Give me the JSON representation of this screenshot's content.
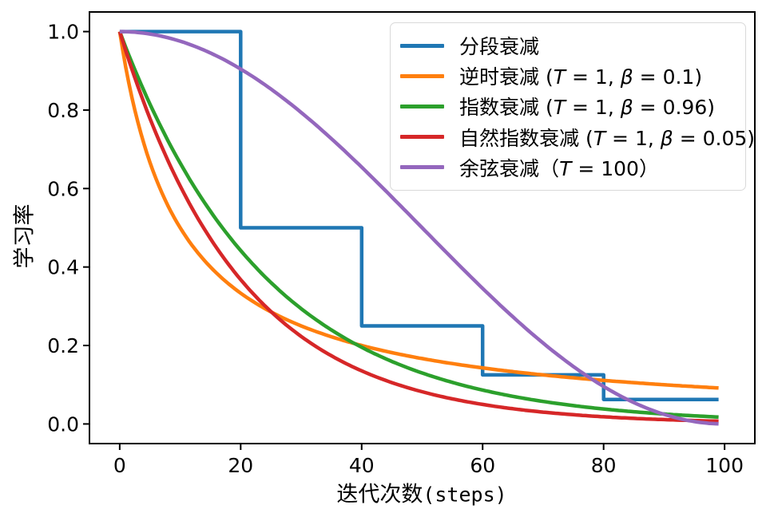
{
  "chart_data": {
    "type": "line",
    "title": "",
    "xlabel": "迭代次数",
    "xlabel_suffix": "(steps)",
    "ylabel": "学习率",
    "x_ticks": [
      0,
      20,
      40,
      60,
      80,
      100
    ],
    "y_ticks": [
      0.0,
      0.2,
      0.4,
      0.6,
      0.8,
      1.0
    ],
    "y_tick_labels": [
      "0.0",
      "0.2",
      "0.4",
      "0.6",
      "0.8",
      "1.0"
    ],
    "xlim": [
      -5,
      105
    ],
    "ylim": [
      -0.05,
      1.05
    ],
    "x_range": [
      0,
      99
    ],
    "grid": false,
    "legend_position": "upper-right",
    "axis_color": "#000000",
    "background_color": "#ffffff",
    "series": [
      {
        "key": "piecewise-decay",
        "label": "分段衰减",
        "color": "#1f77b4",
        "type": "piecewise",
        "breakpoints": [
          0,
          20,
          40,
          60,
          80
        ],
        "values": [
          1.0,
          0.5,
          0.25,
          0.125,
          0.0625
        ]
      },
      {
        "key": "inverse-time-decay",
        "label": "逆时衰减 (T = 1, β = 0.1)",
        "color": "#ff7f0e",
        "type": "inverse_time",
        "params": {
          "T": 1,
          "beta": 0.1
        }
      },
      {
        "key": "exponential-decay",
        "label": "指数衰减 (T = 1, β = 0.96)",
        "color": "#2ca02c",
        "type": "exponential",
        "params": {
          "T": 1,
          "beta": 0.96
        }
      },
      {
        "key": "natural-exp-decay",
        "label": "自然指数衰减 (T = 1, β = 0.05)",
        "color": "#d62728",
        "type": "natural_exp",
        "params": {
          "T": 1,
          "beta": 0.05
        }
      },
      {
        "key": "cosine-decay",
        "label": "余弦衰减（T = 100）",
        "color": "#9467bd",
        "type": "cosine",
        "params": {
          "T": 100
        }
      }
    ],
    "sampled_points": {
      "x": [
        0,
        10,
        20,
        30,
        40,
        50,
        60,
        70,
        80,
        90,
        99
      ],
      "series": {
        "piecewise-decay": [
          1.0,
          1.0,
          0.5,
          0.5,
          0.25,
          0.25,
          0.125,
          0.125,
          0.0625,
          0.0625,
          0.0625
        ],
        "inverse-time-decay": [
          1.0,
          0.5,
          0.3333,
          0.25,
          0.2,
          0.1667,
          0.1429,
          0.125,
          0.1111,
          0.1,
          0.0917
        ],
        "exponential-decay": [
          1.0,
          0.6648,
          0.442,
          0.2939,
          0.1954,
          0.1299,
          0.0864,
          0.0574,
          0.0382,
          0.0254,
          0.0176
        ],
        "natural-exp-decay": [
          1.0,
          0.6065,
          0.3679,
          0.2231,
          0.1353,
          0.0821,
          0.0498,
          0.0302,
          0.0183,
          0.0111,
          0.0071
        ],
        "cosine-decay": [
          1.0,
          0.9755,
          0.9045,
          0.7939,
          0.6545,
          0.5,
          0.3455,
          0.2061,
          0.0955,
          0.0245,
          0.0002
        ]
      }
    }
  }
}
